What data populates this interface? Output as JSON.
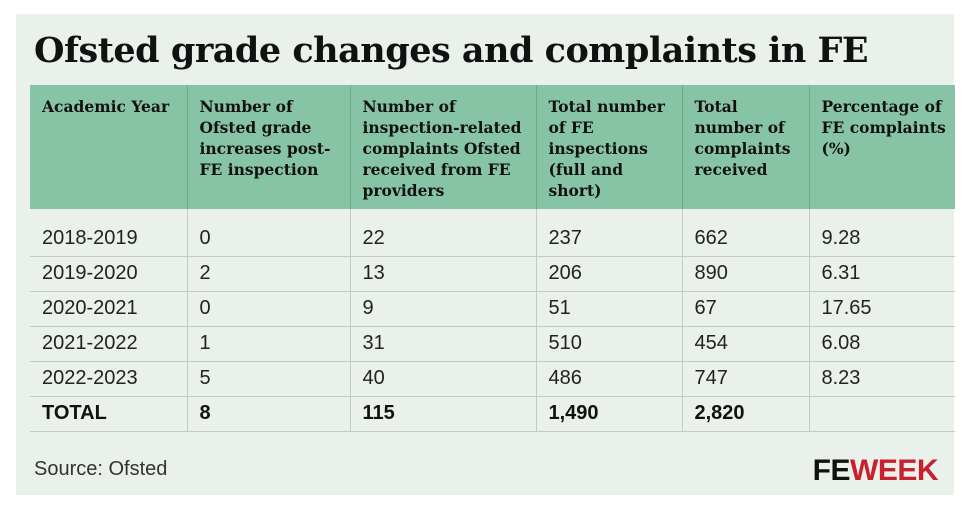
{
  "title": "Ofsted grade changes and complaints in FE",
  "table": {
    "headers": [
      "Academic Year",
      "Number of Ofsted grade increases post-FE inspection",
      "Number of inspection-related complaints Ofsted received from FE providers",
      "Total number of FE inspections (full and short)",
      "Total number of complaints received",
      "Percentage of FE complaints (%)"
    ],
    "rows": [
      [
        "2018-2019",
        "0",
        "22",
        "237",
        "662",
        "9.28"
      ],
      [
        "2019-2020",
        "2",
        "13",
        "206",
        "890",
        "6.31"
      ],
      [
        "2020-2021",
        "0",
        "9",
        "51",
        "67",
        "17.65"
      ],
      [
        "2021-2022",
        "1",
        "31",
        "510",
        "454",
        "6.08"
      ],
      [
        "2022-2023",
        "5",
        "40",
        "486",
        "747",
        "8.23"
      ]
    ],
    "total": [
      "TOTAL",
      "8",
      "115",
      "1,490",
      "2,820",
      ""
    ]
  },
  "source": "Source: Ofsted",
  "logo": {
    "fe": "FE",
    "week": "WEEK"
  },
  "colors": {
    "header_bg": "#87c4a6",
    "panel_bg": "#e9f1ea",
    "logo_red": "#c8202f"
  }
}
